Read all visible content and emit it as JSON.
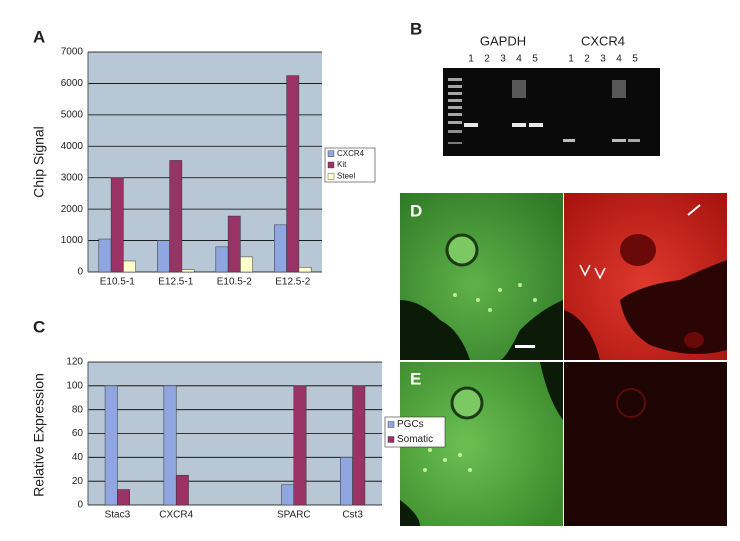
{
  "chart_data": [
    {
      "type": "bar",
      "panel_label": "A",
      "y_label": "Chip Signal",
      "categories": [
        "E10.5-1",
        "E12.5-1",
        "E10.5-2",
        "E12.5-2"
      ],
      "series": [
        {
          "name": "CXCR4",
          "color": "#8fa6e0",
          "values": [
            1050,
            1000,
            800,
            1500
          ]
        },
        {
          "name": "Kit",
          "color": "#993366",
          "values": [
            3000,
            3550,
            1780,
            6250
          ]
        },
        {
          "name": "Steel",
          "color": "#ffffcc",
          "values": [
            350,
            80,
            480,
            150
          ]
        }
      ],
      "ylim": [
        0,
        7000
      ],
      "yticks": [
        0,
        1000,
        2000,
        3000,
        4000,
        5000,
        6000,
        7000
      ],
      "grid": true,
      "legend": "right"
    },
    {
      "type": "bar",
      "panel_label": "C",
      "y_label": "Relative Expression",
      "categories": [
        "Stac3",
        "CXCR4",
        null,
        "SPARC",
        "Cst3"
      ],
      "series": [
        {
          "name": "PGCs",
          "color": "#8fa6e0",
          "values": [
            100,
            100,
            null,
            17,
            40
          ]
        },
        {
          "name": "Somatic",
          "color": "#993366",
          "values": [
            13,
            25,
            null,
            100,
            100
          ]
        }
      ],
      "ylim": [
        0,
        120
      ],
      "yticks": [
        0,
        20,
        40,
        60,
        80,
        100,
        120
      ],
      "grid": true,
      "legend": "right"
    }
  ],
  "gel": {
    "panel_label": "B",
    "lane_groups": [
      {
        "name": "GAPDH",
        "lanes": [
          "1",
          "2",
          "3",
          "4",
          "5"
        ]
      },
      {
        "name": "CXCR4",
        "lanes": [
          "1",
          "2",
          "3",
          "4",
          "5"
        ]
      }
    ]
  },
  "micrographs": [
    {
      "label": "D"
    },
    {
      "label": "E"
    }
  ]
}
